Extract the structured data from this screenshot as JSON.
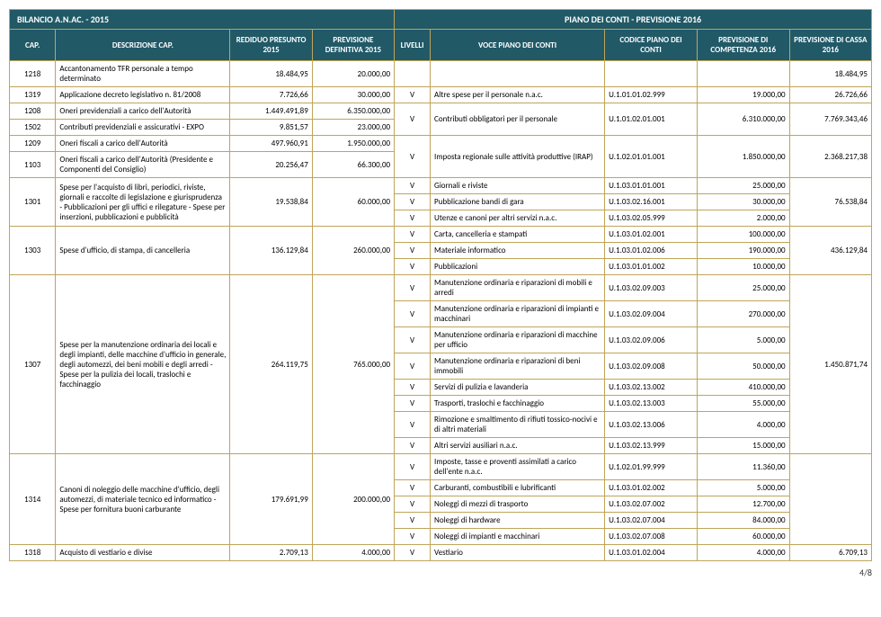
{
  "titleLeft": "BILANCIO A.N.AC. - 2015",
  "titleRight": "PIANO DEI CONTI - PREVISIONE 2016",
  "headers": {
    "cap": "CAP.",
    "desc": "DESCRIZIONE CAP.",
    "residuo": "REDIDUO PRESUNTO 2015",
    "prev15": "PREVISIONE DEFINITIVA 2015",
    "livelli": "LIVELLI",
    "voce": "VOCE PIANO DEI CONTI",
    "codice": "CODICE PIANO DEI CONTI",
    "comp": "PREVISIONE DI COMPETENZA 2016",
    "cassa": "PREVISIONE DI CASSA 2016"
  },
  "rows": [
    {
      "cap": "1218",
      "desc": "Accantonamento TFR personale a tempo determinato",
      "res": "18.484,95",
      "p15": "20.000,00",
      "liv": "",
      "voce": "",
      "cod": "",
      "comp": "",
      "cassa": "18.484,95",
      "rs": 1
    },
    {
      "cap": "1319",
      "desc": "Applicazione  decreto legislativo n. 81/2008",
      "res": "7.726,66",
      "p15": "30.000,00",
      "liv": "V",
      "voce": "Altre spese per il personale n.a.c.",
      "cod": "U.1.01.01.02.999",
      "comp": "19.000,00",
      "cassa": "26.726,66",
      "rs": 1
    },
    {
      "cap": "1208",
      "desc": "Oneri previdenziali a carico dell'Autorità",
      "res": "1.449.491,89",
      "p15": "6.350.000,00",
      "sub": [
        {
          "liv": "V",
          "voce": "Contributi obbligatori per il personale",
          "cod": "U.1.01.02.01.001",
          "comp": "6.310.000,00",
          "cassa": "7.769.343,46"
        }
      ],
      "rs": 1,
      "group": 2
    },
    {
      "cap": "1502",
      "desc": "Contributi previdenziali e assicurativi - EXPO",
      "res": "9.851,57",
      "p15": "23.000,00",
      "rs": 1
    },
    {
      "cap": "1209",
      "desc": "Oneri fiscali a carico dell'Autorità",
      "res": "497.960,91",
      "p15": "1.950.000,00",
      "sub": [
        {
          "liv": "V",
          "voce": "Imposta regionale sulle attività produttive (IRAP)",
          "cod": "U.1.02.01.01.001",
          "comp": "1.850.000,00",
          "cassa": "2.368.217,38"
        }
      ],
      "rs": 1,
      "group": 2
    },
    {
      "cap": "1103",
      "desc": "Oneri fiscali a carico dell'Autorità (Presidente e Componenti del Consiglio)",
      "res": "20.256,47",
      "p15": "66.300,00",
      "rs": 1
    },
    {
      "cap": "1301",
      "desc": "Spese per l'acquisto di libri, periodici, riviste, giornali e raccolte di legislazione e giurisprudenza - Pubblicazioni  per gli uffici e rilegature - Spese per inserzioni, pubblicazioni e pubblicità",
      "res": "19.538,84",
      "p15": "60.000,00",
      "sub": [
        {
          "liv": "V",
          "voce": "Giornali e riviste",
          "cod": "U.1.03.01.01.001",
          "comp": "25.000,00"
        },
        {
          "liv": "V",
          "voce": "Pubblicazione bandi di gara",
          "cod": "U.1.03.02.16.001",
          "comp": "30.000,00"
        },
        {
          "liv": "V",
          "voce": "Utenze e canoni per altri servizi n.a.c.",
          "cod": "U.1.03.02.05.999",
          "comp": "2.000,00"
        }
      ],
      "cassa": "76.538,84",
      "rs": 3
    },
    {
      "cap": "1303",
      "desc": "Spese d'ufficio, di stampa, di cancelleria",
      "res": "136.129,84",
      "p15": "260.000,00",
      "sub": [
        {
          "liv": "V",
          "voce": "Carta, cancelleria e stampati",
          "cod": "U.1.03.01.02.001",
          "comp": "100.000,00"
        },
        {
          "liv": "V",
          "voce": "Materiale informatico",
          "cod": "U.1.03.01.02.006",
          "comp": "190.000,00"
        },
        {
          "liv": "V",
          "voce": "Pubblicazioni",
          "cod": "U.1.03.01.01.002",
          "comp": "10.000,00"
        }
      ],
      "cassa": "436.129,84",
      "rs": 3
    },
    {
      "cap": "1307",
      "desc": "Spese per la manutenzione ordinaria dei locali e degli impianti, delle macchine d'ufficio in generale, degli automezzi, dei beni mobili e degli arredi - Spese per la pulizia dei locali, traslochi e facchinaggio",
      "res": "264.119,75",
      "p15": "765.000,00",
      "sub": [
        {
          "liv": "V",
          "voce": "Manutenzione ordinaria e riparazioni di mobili e arredi",
          "cod": "U.1.03.02.09.003",
          "comp": "25.000,00"
        },
        {
          "liv": "V",
          "voce": "Manutenzione ordinaria e riparazioni di impianti e macchinari",
          "cod": "U.1.03.02.09.004",
          "comp": "270.000,00"
        },
        {
          "liv": "V",
          "voce": "Manutenzione ordinaria e riparazioni di macchine per ufficio",
          "cod": "U.1.03.02.09.006",
          "comp": "5.000,00"
        },
        {
          "liv": "V",
          "voce": "Manutenzione ordinaria e riparazioni di beni immobili",
          "cod": "U.1.03.02.09.008",
          "comp": "50.000,00"
        },
        {
          "liv": "V",
          "voce": "Servizi di pulizia e lavanderia",
          "cod": "U.1.03.02.13.002",
          "comp": "410.000,00"
        },
        {
          "liv": "V",
          "voce": "Trasporti, traslochi e facchinaggio",
          "cod": "U.1.03.02.13.003",
          "comp": "55.000,00"
        },
        {
          "liv": "V",
          "voce": "Rimozione e smaltimento di rifiuti tossico-nocivi e di altri materiali",
          "cod": "U.1.03.02.13.006",
          "comp": "4.000,00"
        },
        {
          "liv": "V",
          "voce": "Altri servizi ausiliari n.a.c.",
          "cod": "U.1.03.02.13.999",
          "comp": "15.000,00"
        }
      ],
      "cassa": "1.450.871,74",
      "rs": 8
    },
    {
      "cap": "1314",
      "desc": "Canoni di noleggio delle macchine d'ufficio, degli automezzi,  di materiale tecnico ed informatico - Spese per fornitura buoni carburante",
      "res": "179.691,99",
      "p15": "200.000,00",
      "sub": [
        {
          "liv": "V",
          "voce": "Imposte, tasse e proventi assimilati a carico dell'ente n.a.c.",
          "cod": "U.1.02.01.99.999",
          "comp": "11.360,00"
        },
        {
          "liv": "V",
          "voce": "Carburanti, combustibili e lubrificanti",
          "cod": "U.1.03.01.02.002",
          "comp": "5.000,00"
        },
        {
          "liv": "V",
          "voce": "Noleggi di mezzi di trasporto",
          "cod": "U.1.03.02.07.002",
          "comp": "12.700,00"
        },
        {
          "liv": "V",
          "voce": "Noleggi di hardware",
          "cod": "U.1.03.02.07.004",
          "comp": "84.000,00"
        },
        {
          "liv": "V",
          "voce": "Noleggi di impianti e macchinari",
          "cod": "U.1.03.02.07.008",
          "comp": "60.000,00"
        }
      ],
      "cassa": "",
      "rs": 5
    },
    {
      "cap": "1318",
      "desc": "Acquisto di vestiario e divise",
      "res": "2.709,13",
      "p15": "4.000,00",
      "liv": "V",
      "voce": "Vestiario",
      "cod": "U.1.03.01.02.004",
      "comp": "4.000,00",
      "cassa": "6.709,13",
      "rs": 1
    }
  ],
  "pagenum": "4/8"
}
